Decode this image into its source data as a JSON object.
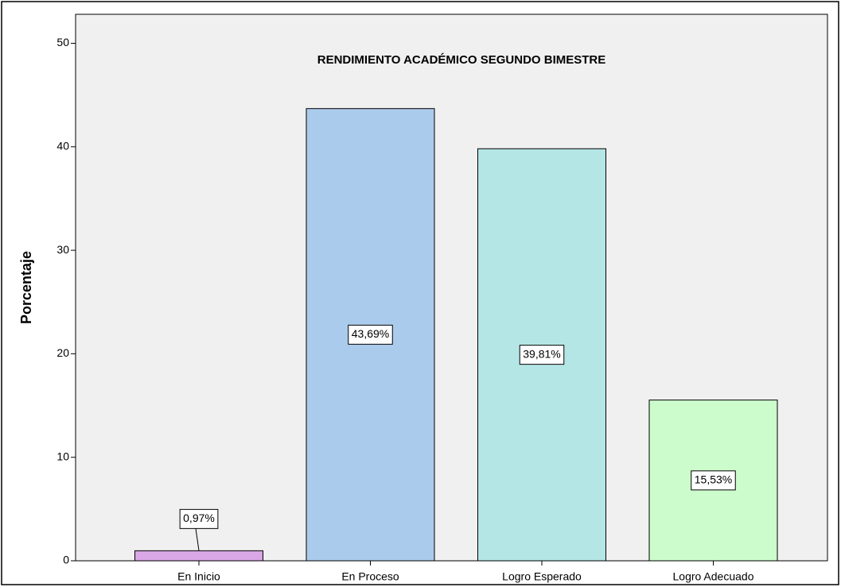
{
  "chart_data": {
    "type": "bar",
    "title": "RENDIMIENTO ACADÉMICO SEGUNDO BIMESTRE",
    "y_label": "Porcentaje",
    "categories": [
      "En Inicio",
      "En Proceso",
      "Logro Esperado",
      "Logro Adecuado"
    ],
    "values": [
      0.97,
      43.69,
      39.81,
      15.53
    ],
    "value_labels": [
      "0,97%",
      "43,69%",
      "39,81%",
      "15,53%"
    ],
    "colors": [
      "#d9a6e6",
      "#abcbec",
      "#b5e6e6",
      "#ccfccc"
    ],
    "ylim": [
      0,
      52.8
    ],
    "yticks": [
      0,
      10,
      20,
      30,
      40,
      50
    ],
    "grid": false
  }
}
